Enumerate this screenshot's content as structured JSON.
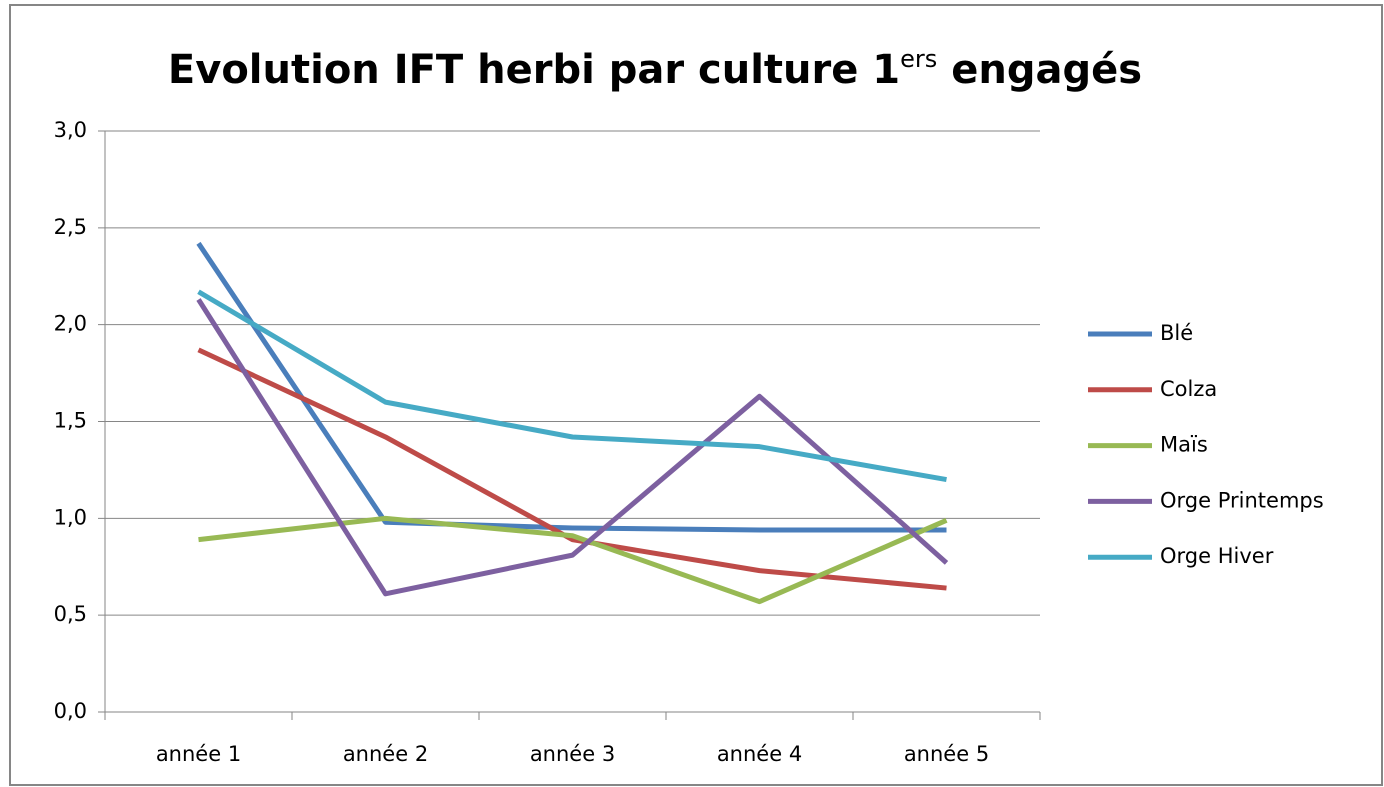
{
  "chart_data": {
    "type": "line",
    "title": [
      "Evolution IFT herbi par culture 1",
      "ers",
      "engagés"
    ],
    "categories": [
      "année 1",
      "année 2",
      "année 3",
      "année 4",
      "année 5"
    ],
    "series": [
      {
        "name": "Blé",
        "color": "#4a7ebb",
        "values": [
          2.42,
          0.98,
          0.95,
          0.94,
          0.94
        ]
      },
      {
        "name": "Colza",
        "color": "#be4b48",
        "values": [
          1.87,
          1.42,
          0.89,
          0.73,
          0.64
        ]
      },
      {
        "name": "Maïs",
        "color": "#98b954",
        "values": [
          0.89,
          1.0,
          0.91,
          0.57,
          0.99
        ]
      },
      {
        "name": "Orge Printemps",
        "color": "#7d60a0",
        "values": [
          2.13,
          0.61,
          0.81,
          1.63,
          0.77
        ]
      },
      {
        "name": "Orge Hiver",
        "color": "#46aac5",
        "values": [
          2.17,
          1.6,
          1.42,
          1.37,
          1.2
        ]
      }
    ],
    "ylim": [
      0,
      3
    ],
    "yticks": [
      {
        "value": 0,
        "label": "0,0"
      },
      {
        "value": 0.5,
        "label": "0,5"
      },
      {
        "value": 1,
        "label": "1,0"
      },
      {
        "value": 1.5,
        "label": "1,5"
      },
      {
        "value": 2,
        "label": "2,0"
      },
      {
        "value": 2.5,
        "label": "2,5"
      },
      {
        "value": 3,
        "label": "3,0"
      }
    ],
    "grid": true,
    "legend": "right"
  }
}
